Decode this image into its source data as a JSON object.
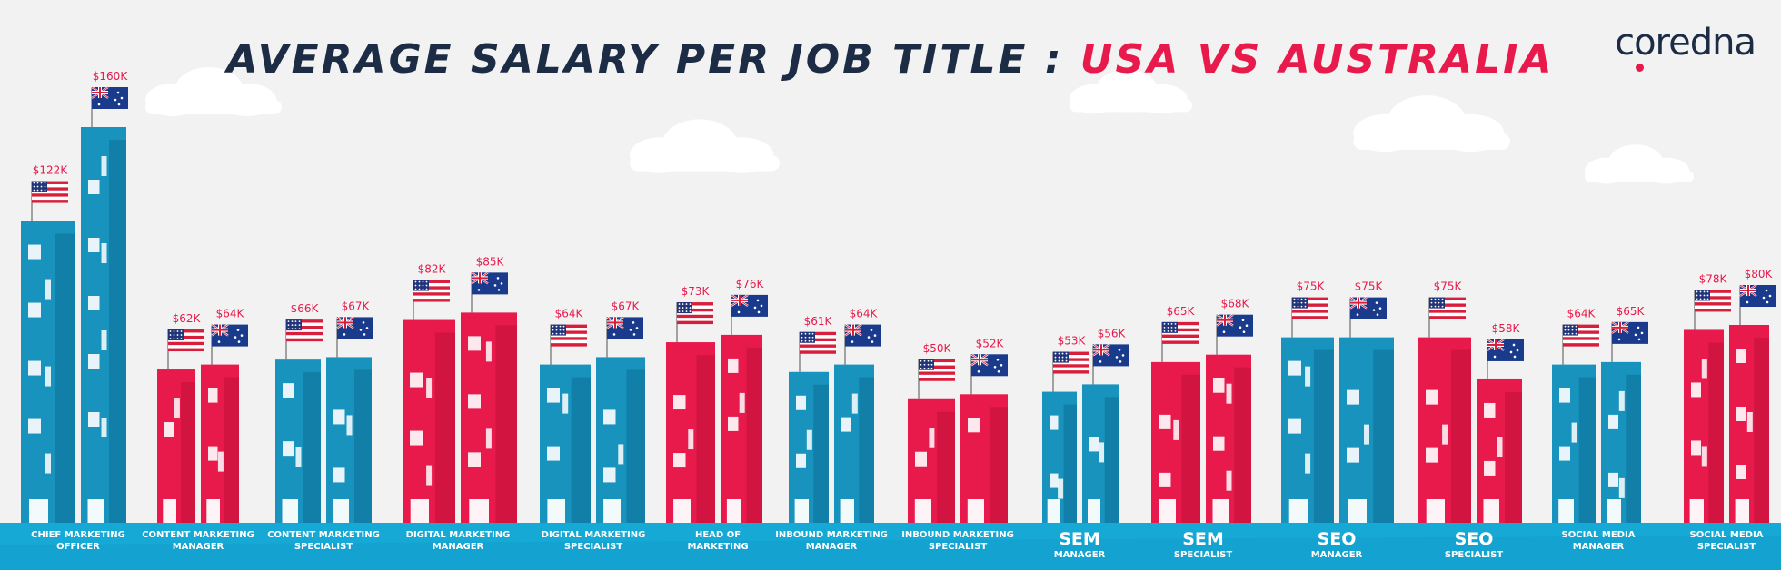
{
  "title": {
    "part1": "AVERAGE SALARY PER JOB TITLE :",
    "part2": "USA VS AUSTRALIA"
  },
  "brand": {
    "logo_text": "coredna"
  },
  "colors": {
    "usa": "#e8194b",
    "usa_dark": "#c0103a",
    "australia": "#1793bd",
    "australia_dark": "#0d6f95",
    "base": "#17a9d6",
    "label_text": "#ffffff",
    "value_text": "#e8194b"
  },
  "chart_data": {
    "type": "bar",
    "title": "AVERAGE SALARY PER JOB TITLE : USA VS AUSTRALIA",
    "categories": [
      {
        "line1": "CHIEF MARKETING",
        "line2": "OFFICER",
        "big": false
      },
      {
        "line1": "CONTENT MARKETING",
        "line2": "MANAGER",
        "big": false
      },
      {
        "line1": "CONTENT MARKETING",
        "line2": "SPECIALIST",
        "big": false
      },
      {
        "line1": "DIGITAL MARKETING",
        "line2": "MANAGER",
        "big": false
      },
      {
        "line1": "DIGITAL MARKETING",
        "line2": "SPECIALIST",
        "big": false
      },
      {
        "line1": "HEAD OF",
        "line2": "MARKETING",
        "big": false
      },
      {
        "line1": "INBOUND MARKETING",
        "line2": "MANAGER",
        "big": false
      },
      {
        "line1": "INBOUND MARKETING",
        "line2": "SPECIALIST",
        "big": false
      },
      {
        "line1": "SEM",
        "line2": "MANAGER",
        "big": true
      },
      {
        "line1": "SEM",
        "line2": "SPECIALIST",
        "big": true
      },
      {
        "line1": "SEO",
        "line2": "MANAGER",
        "big": true
      },
      {
        "line1": "SEO",
        "line2": "SPECIALIST",
        "big": true
      },
      {
        "line1": "SOCIAL MEDIA",
        "line2": "MANAGER",
        "big": false
      },
      {
        "line1": "SOCIAL MEDIA",
        "line2": "SPECIALIST",
        "big": false
      }
    ],
    "series": [
      {
        "name": "USA",
        "flag": "us-flag-icon",
        "values": [
          122,
          62,
          66,
          82,
          64,
          73,
          61,
          50,
          53,
          65,
          75,
          75,
          64,
          78
        ],
        "labels": [
          "$122K",
          "$62K",
          "$66K",
          "$82K",
          "$64K",
          "$73K",
          "$61K",
          "$50K",
          "$53K",
          "$65K",
          "$75K",
          "$75K",
          "$64K",
          "$78K"
        ]
      },
      {
        "name": "Australia",
        "flag": "au-flag-icon",
        "values": [
          160,
          64,
          67,
          85,
          67,
          76,
          64,
          52,
          56,
          68,
          75,
          58,
          65,
          80
        ],
        "labels": [
          "$160K",
          "$64K",
          "$67K",
          "$85K",
          "$67K",
          "$76K",
          "$64K",
          "$52K",
          "$56K",
          "$68K",
          "$75K",
          "$58K",
          "$65K",
          "$80K"
        ]
      }
    ],
    "ylim": [
      0,
      160
    ],
    "grid": false,
    "legend": "none"
  }
}
